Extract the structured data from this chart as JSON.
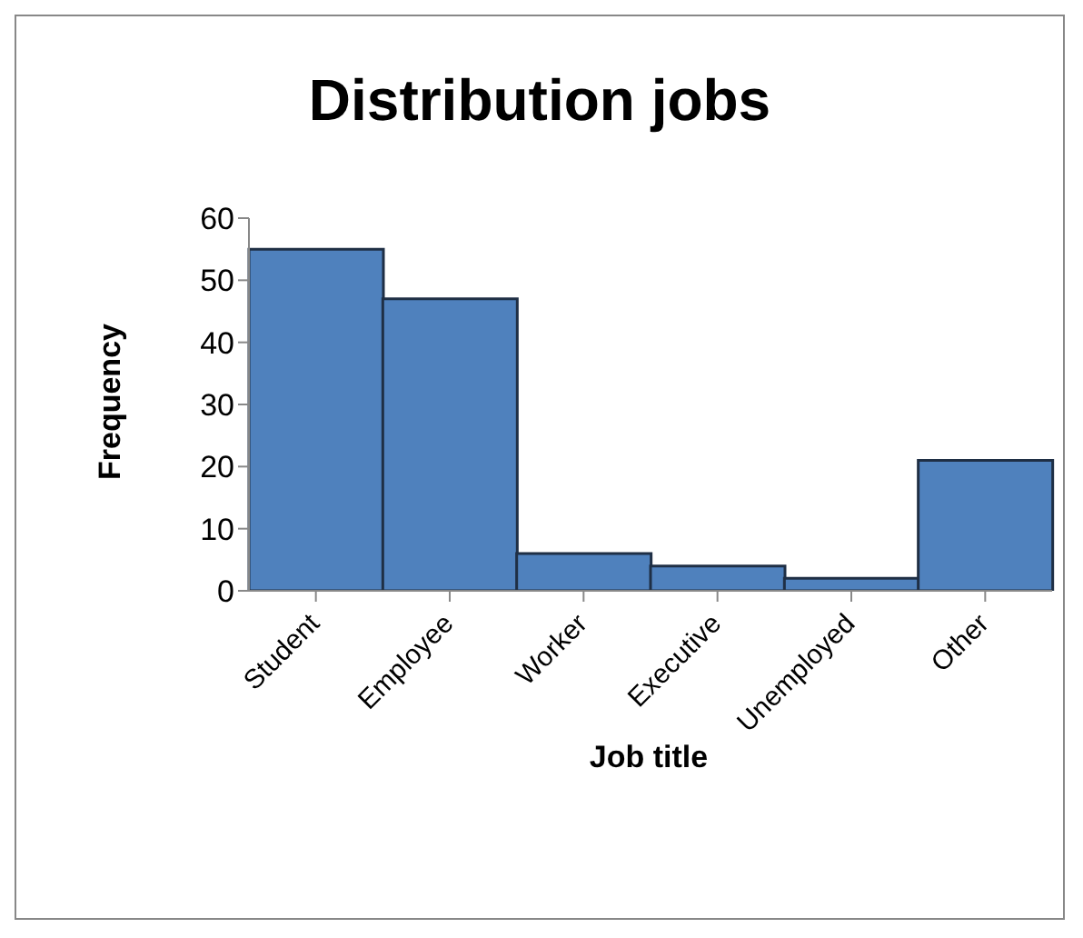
{
  "chart_data": {
    "type": "bar",
    "title": "Distribution jobs",
    "xlabel": "Job title",
    "ylabel": "Frequency",
    "categories": [
      "Student",
      "Employee",
      "Worker",
      "Executive",
      "Unemployed",
      "Other"
    ],
    "values": [
      55,
      47,
      6,
      4,
      2,
      21
    ],
    "color": "#4f81bd",
    "ylim": [
      0,
      60
    ],
    "yticks": [
      0,
      10,
      20,
      30,
      40,
      50,
      60
    ],
    "grid": false,
    "legend": false
  }
}
